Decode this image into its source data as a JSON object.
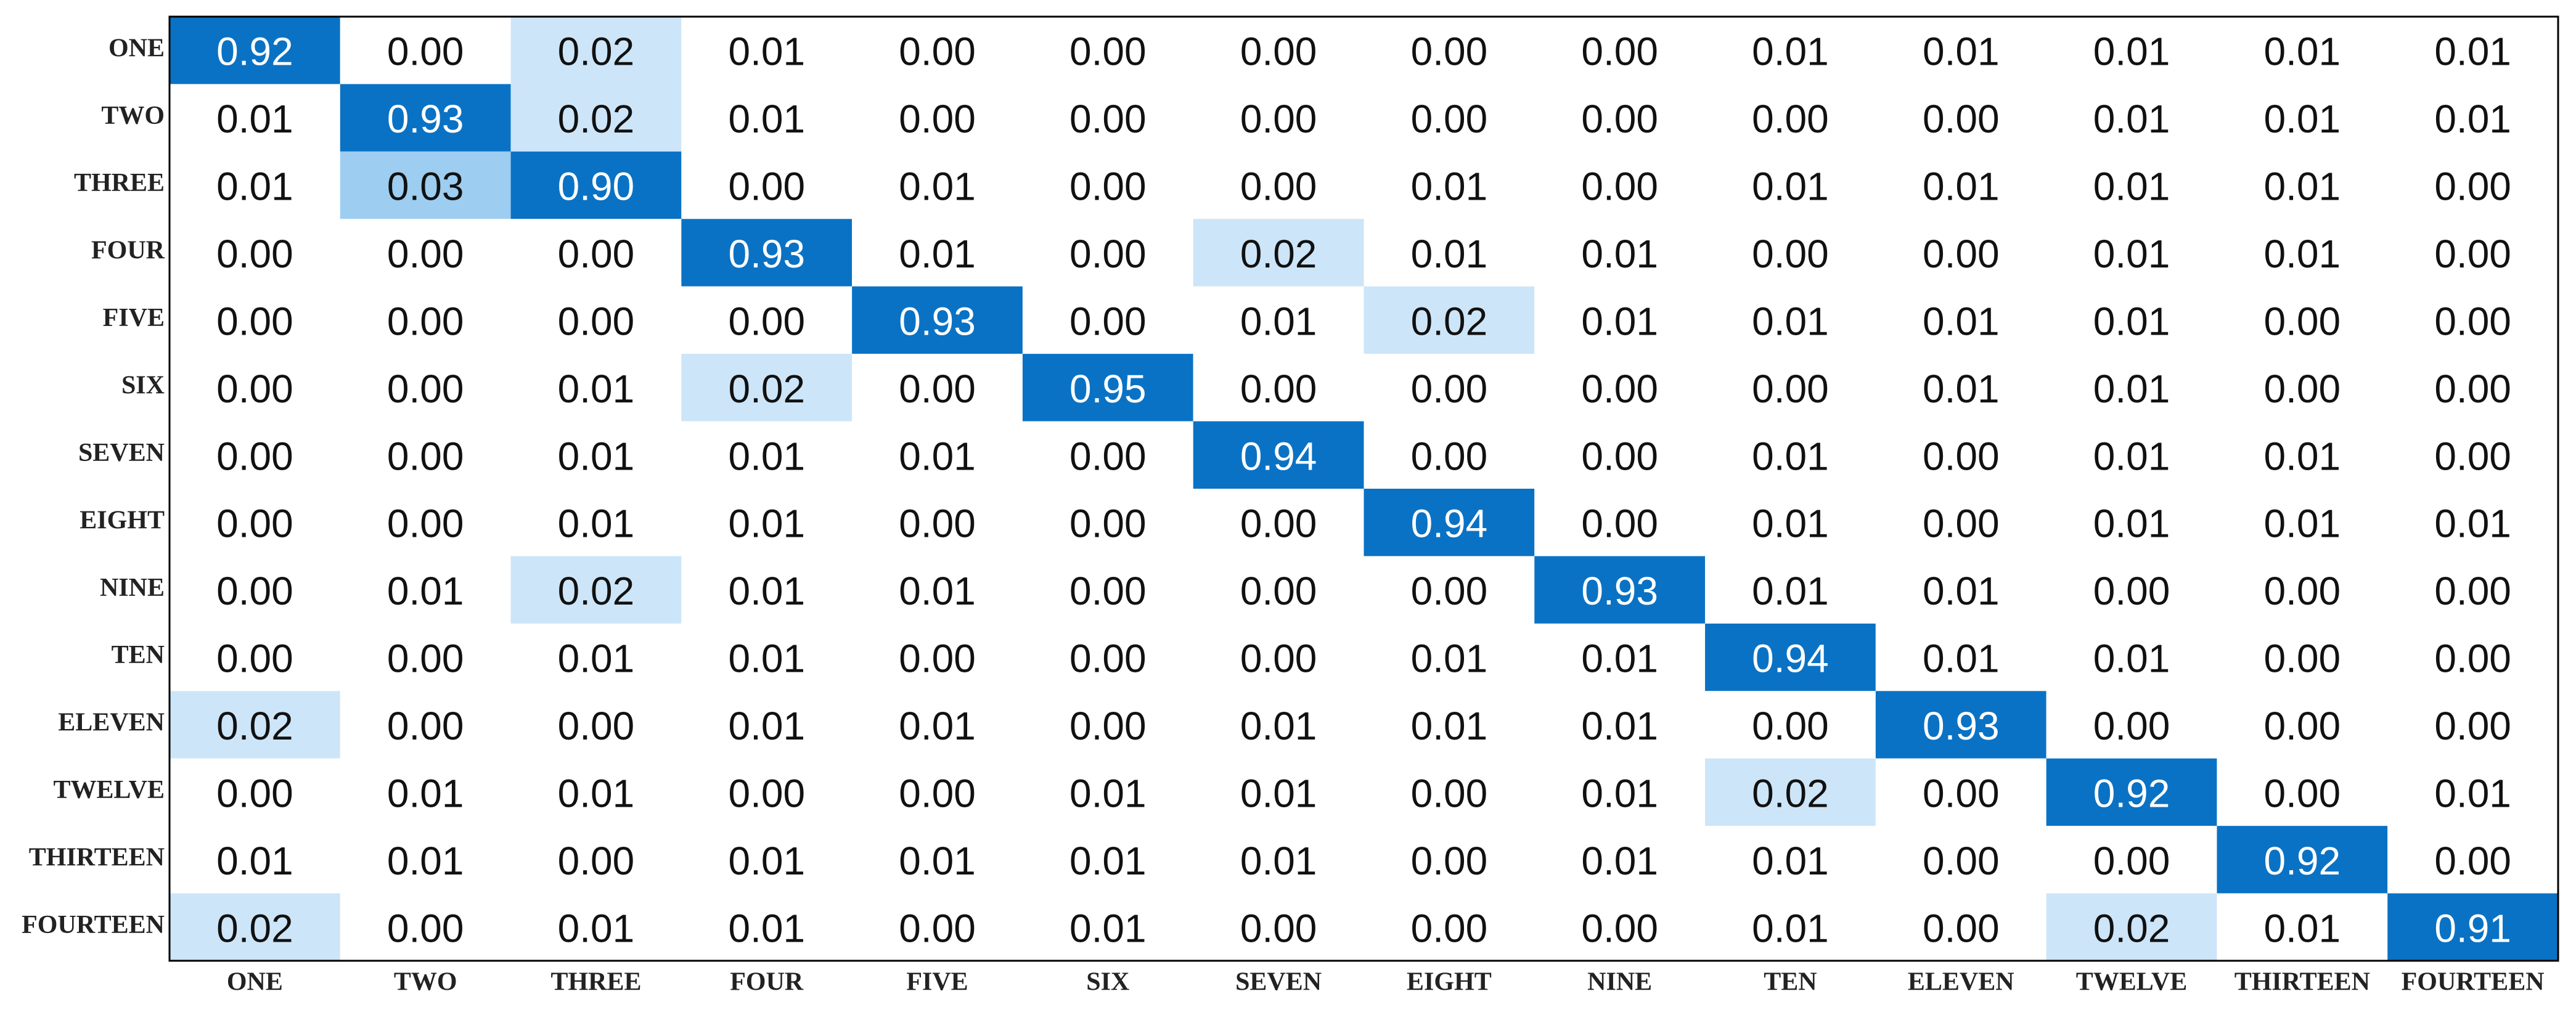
{
  "chart_data": {
    "type": "heatmap",
    "categories": [
      "ONE",
      "TWO",
      "THREE",
      "FOUR",
      "FIVE",
      "SIX",
      "SEVEN",
      "EIGHT",
      "NINE",
      "TEN",
      "ELEVEN",
      "TWELVE",
      "THIRTEEN",
      "FOURTEEN"
    ],
    "values": [
      [
        0.92,
        0,
        0.02,
        0.01,
        0,
        0,
        0,
        0,
        0,
        0.01,
        0.01,
        0.01,
        0.01,
        0.01
      ],
      [
        0.01,
        0.93,
        0.02,
        0.01,
        0,
        0,
        0,
        0,
        0,
        0,
        0,
        0.01,
        0.01,
        0.01
      ],
      [
        0.01,
        0.03,
        0.9,
        0,
        0.01,
        0,
        0,
        0.01,
        0,
        0.01,
        0.01,
        0.01,
        0.01,
        0
      ],
      [
        0,
        0,
        0,
        0.93,
        0.01,
        0,
        0.02,
        0.01,
        0.01,
        0,
        0,
        0.01,
        0.01,
        0
      ],
      [
        0,
        0,
        0,
        0,
        0.93,
        0,
        0.01,
        0.02,
        0.01,
        0.01,
        0.01,
        0.01,
        0,
        0
      ],
      [
        0,
        0,
        0.01,
        0.02,
        0,
        0.95,
        0,
        0,
        0,
        0,
        0.01,
        0.01,
        0,
        0
      ],
      [
        0,
        0,
        0.01,
        0.01,
        0.01,
        0,
        0.94,
        0,
        0,
        0.01,
        0,
        0.01,
        0.01,
        0
      ],
      [
        0,
        0,
        0.01,
        0.01,
        0,
        0,
        0,
        0.94,
        0,
        0.01,
        0,
        0.01,
        0.01,
        0.01
      ],
      [
        0,
        0.01,
        0.02,
        0.01,
        0.01,
        0,
        0,
        0,
        0.93,
        0.01,
        0.01,
        0,
        0,
        0
      ],
      [
        0,
        0,
        0.01,
        0.01,
        0,
        0,
        0,
        0.01,
        0.01,
        0.94,
        0.01,
        0.01,
        0,
        0
      ],
      [
        0.02,
        0,
        0,
        0.01,
        0.01,
        0,
        0.01,
        0.01,
        0.01,
        0,
        0.93,
        0,
        0,
        0
      ],
      [
        0,
        0.01,
        0.01,
        0,
        0,
        0.01,
        0.01,
        0,
        0.01,
        0.02,
        0,
        0.92,
        0,
        0.01
      ],
      [
        0.01,
        0.01,
        0,
        0.01,
        0.01,
        0.01,
        0.01,
        0,
        0.01,
        0.01,
        0,
        0,
        0.92,
        0
      ],
      [
        0.02,
        0,
        0.01,
        0.01,
        0,
        0.01,
        0,
        0,
        0,
        0.01,
        0,
        0.02,
        0.01,
        0.91
      ]
    ],
    "value_labels": [
      [
        "0.92",
        "0.00",
        "0.02",
        "0.01",
        "0.00",
        "0.00",
        "0.00",
        "0.00",
        "0.00",
        "0.01",
        "0.01",
        "0.01",
        "0.01",
        "0.01"
      ],
      [
        "0.01",
        "0.93",
        "0.02",
        "0.01",
        "0.00",
        "0.00",
        "0.00",
        "0.00",
        "0.00",
        "0.00",
        "0.00",
        "0.01",
        "0.01",
        "0.01"
      ],
      [
        "0.01",
        "0.03",
        "0.90",
        "0.00",
        "0.01",
        "0.00",
        "0.00",
        "0.01",
        "0.00",
        "0.01",
        "0.01",
        "0.01",
        "0.01",
        "0.00"
      ],
      [
        "0.00",
        "0.00",
        "0.00",
        "0.93",
        "0.01",
        "0.00",
        "0.02",
        "0.01",
        "0.01",
        "0.00",
        "0.00",
        "0.01",
        "0.01",
        "0.00"
      ],
      [
        "0.00",
        "0.00",
        "0.00",
        "0.00",
        "0.93",
        "0.00",
        "0.01",
        "0.02",
        "0.01",
        "0.01",
        "0.01",
        "0.01",
        "0.00",
        "0.00"
      ],
      [
        "0.00",
        "0.00",
        "0.01",
        "0.02",
        "0.00",
        "0.95",
        "0.00",
        "0.00",
        "0.00",
        "0.00",
        "0.01",
        "0.01",
        "0.00",
        "0.00"
      ],
      [
        "0.00",
        "0.00",
        "0.01",
        "0.01",
        "0.01",
        "0.00",
        "0.94",
        "0.00",
        "0.00",
        "0.01",
        "0.00",
        "0.01",
        "0.01",
        "0.00"
      ],
      [
        "0.00",
        "0.00",
        "0.01",
        "0.01",
        "0.00",
        "0.00",
        "0.00",
        "0.94",
        "0.00",
        "0.01",
        "0.00",
        "0.01",
        "0.01",
        "0.01"
      ],
      [
        "0.00",
        "0.01",
        "0.02",
        "0.01",
        "0.01",
        "0.00",
        "0.00",
        "0.00",
        "0.93",
        "0.01",
        "0.01",
        "0.00",
        "0.00",
        "0.00"
      ],
      [
        "0.00",
        "0.00",
        "0.01",
        "0.01",
        "0.00",
        "0.00",
        "0.00",
        "0.01",
        "0.01",
        "0.94",
        "0.01",
        "0.01",
        "0.00",
        "0.00"
      ],
      [
        "0.02",
        "0.00",
        "0.00",
        "0.01",
        "0.01",
        "0.00",
        "0.01",
        "0.01",
        "0.01",
        "0.00",
        "0.93",
        "0.00",
        "0.00",
        "0.00"
      ],
      [
        "0.00",
        "0.01",
        "0.01",
        "0.00",
        "0.00",
        "0.01",
        "0.01",
        "0.00",
        "0.01",
        "0.02",
        "0.00",
        "0.92",
        "0.00",
        "0.01"
      ],
      [
        "0.01",
        "0.01",
        "0.00",
        "0.01",
        "0.01",
        "0.01",
        "0.01",
        "0.00",
        "0.01",
        "0.01",
        "0.00",
        "0.00",
        "0.92",
        "0.00"
      ],
      [
        "0.02",
        "0.00",
        "0.01",
        "0.01",
        "0.00",
        "0.01",
        "0.00",
        "0.00",
        "0.00",
        "0.01",
        "0.00",
        "0.02",
        "0.01",
        "0.91"
      ]
    ]
  }
}
